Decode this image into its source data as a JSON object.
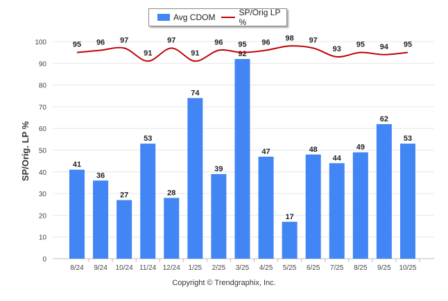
{
  "chart_data": {
    "type": "bar+line",
    "categories": [
      "8/24",
      "9/24",
      "10/24",
      "11/24",
      "12/24",
      "1/25",
      "2/25",
      "3/25",
      "4/25",
      "5/25",
      "6/25",
      "7/25",
      "8/25",
      "9/25",
      "10/25"
    ],
    "series": [
      {
        "name": "Avg CDOM",
        "type": "bar",
        "color": "#4285f4",
        "values": [
          41,
          36,
          27,
          53,
          28,
          74,
          39,
          92,
          47,
          17,
          48,
          44,
          49,
          62,
          53
        ]
      },
      {
        "name": "SP/Orig LP %",
        "type": "line",
        "color": "#c00000",
        "values": [
          95,
          96,
          97,
          91,
          97,
          91,
          96,
          95,
          96,
          98,
          97,
          93,
          95,
          94,
          95
        ]
      }
    ],
    "ylabel": "SP/Orig. LP %",
    "ylim": [
      0,
      100
    ],
    "yticks": [
      0,
      10,
      20,
      30,
      40,
      50,
      60,
      70,
      80,
      90,
      100
    ],
    "grid": true,
    "legend": "top-center"
  },
  "legend": {
    "bar_label": "Avg CDOM",
    "line_label": "SP/Orig LP %"
  },
  "footer": {
    "copyright": "Copyright © Trendgraphix, Inc."
  }
}
